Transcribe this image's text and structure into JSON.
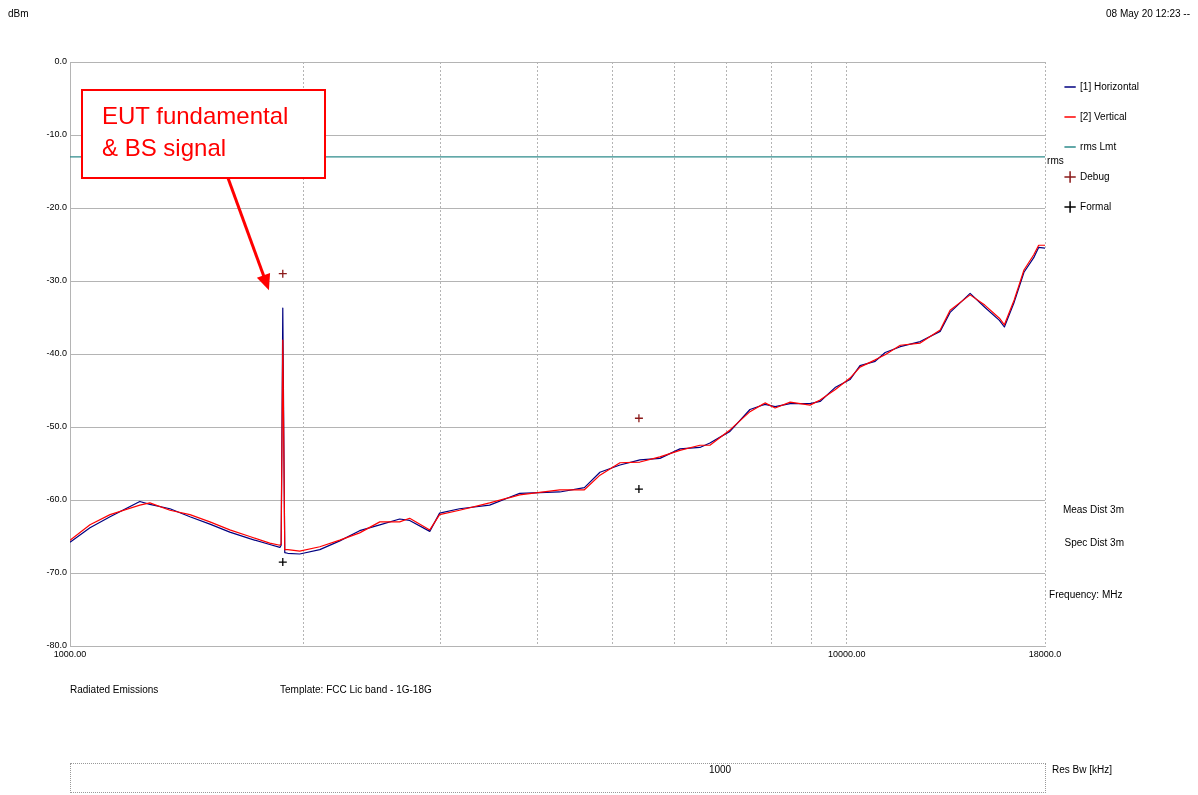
{
  "chart_data": {
    "type": "line",
    "xlabel": "Frequency: MHz",
    "ylabel": "dBm",
    "log": "x",
    "xlim": [
      1000,
      18000
    ],
    "xticks": [
      {
        "value": 1000,
        "label": "1000.00"
      },
      {
        "value": 2000,
        "label": null
      },
      {
        "value": 3000,
        "label": null
      },
      {
        "value": 4000,
        "label": null
      },
      {
        "value": 5000,
        "label": null
      },
      {
        "value": 6000,
        "label": null
      },
      {
        "value": 7000,
        "label": null
      },
      {
        "value": 8000,
        "label": null
      },
      {
        "value": 9000,
        "label": null
      },
      {
        "value": 10000,
        "label": "10000.00"
      },
      {
        "value": 18000,
        "label": "18000.0"
      }
    ],
    "ylim": [
      -80,
      0
    ],
    "yticks": [
      {
        "value": -80,
        "label": "-80.0"
      },
      {
        "value": -70,
        "label": "-70.0"
      },
      {
        "value": -60,
        "label": "-60.0"
      },
      {
        "value": -50,
        "label": "-50.0"
      },
      {
        "value": -40,
        "label": "-40.0"
      },
      {
        "value": -30,
        "label": "-30.0"
      },
      {
        "value": -20,
        "label": "-20.0"
      },
      {
        "value": -10,
        "label": "-10.0"
      },
      {
        "value": 0,
        "label": "0.0"
      }
    ],
    "grid": true,
    "legend": "top right",
    "marker": "none",
    "line_style": "solid",
    "x": [
      1000,
      1061,
      1126,
      1230,
      1267,
      1345,
      1427,
      1514,
      1606,
      1704,
      1808,
      1863,
      1870,
      1879,
      1890,
      1907,
      1976,
      2097,
      2225,
      2360,
      2505,
      2657,
      2737,
      2905,
      2991,
      3173,
      3469,
      3792,
      4271,
      4594,
      4811,
      5105,
      5417,
      5747,
      6098,
      6470,
      6665,
      7073,
      7505,
      7847,
      8086,
      8455,
      8969,
      9239,
      9658,
      10096,
      10399,
      10877,
      11205,
      11718,
      12431,
      13189,
      13583,
      14413,
      15053,
      15721,
      15954,
      16424,
      16908,
      17406,
      17660,
      18000
    ],
    "series": [
      {
        "name": "[1] Horizontal",
        "color": "#000080",
        "values": [
          -65.8,
          -63.8,
          -62.3,
          -60.2,
          -60.6,
          -61.2,
          -62.3,
          -63.3,
          -64.4,
          -65.3,
          -66.1,
          -66.5,
          -66.2,
          -33.7,
          -67.2,
          -67.3,
          -67.4,
          -66.8,
          -65.6,
          -64.2,
          -63.4,
          -62.6,
          -62.8,
          -64.3,
          -61.8,
          -61.2,
          -60.7,
          -59.1,
          -58.9,
          -58.3,
          -56.2,
          -55.2,
          -54.5,
          -54.3,
          -53,
          -52.8,
          -52.2,
          -50.6,
          -47.6,
          -46.9,
          -47.2,
          -46.8,
          -46.8,
          -46.5,
          -44.6,
          -43.5,
          -41.6,
          -41,
          -39.8,
          -39,
          -38.3,
          -36.9,
          -34.3,
          -31.7,
          -33.6,
          -35.4,
          -36.3,
          -32.9,
          -28.8,
          -26.8,
          -25.4,
          -25.5
        ]
      },
      {
        "name": "[2] Vertical",
        "color": "#ff0000",
        "values": [
          -65.5,
          -63.4,
          -62,
          -60.7,
          -60.4,
          -61.4,
          -62,
          -63,
          -64.1,
          -65,
          -65.9,
          -66.2,
          -66,
          -38.1,
          -66.8,
          -66.8,
          -67,
          -66.4,
          -65.5,
          -64.5,
          -63,
          -63,
          -62.5,
          -64.1,
          -62,
          -61.4,
          -60.4,
          -59.3,
          -58.6,
          -58.6,
          -56.6,
          -54.9,
          -54.8,
          -54.1,
          -53.2,
          -52.5,
          -52.5,
          -50.4,
          -47.9,
          -46.7,
          -47.4,
          -46.6,
          -47,
          -46.3,
          -44.9,
          -43.3,
          -41.8,
          -40.8,
          -40.1,
          -38.8,
          -38.5,
          -36.7,
          -34,
          -31.9,
          -33.3,
          -35.1,
          -36,
          -32.6,
          -28.5,
          -26.4,
          -25.1,
          -25.1
        ]
      },
      {
        "name": "rms Lmt",
        "type": "line",
        "color": "#2e8b8b",
        "x": [
          1000,
          18000
        ],
        "values": [
          -13,
          -13
        ]
      },
      {
        "name": "Debug",
        "type": "scatter",
        "marker": "cross",
        "color": "#8b1a1a",
        "x": [
          1879,
          5400
        ],
        "values": [
          -29,
          -48.8
        ]
      },
      {
        "name": "Formal",
        "type": "scatter",
        "marker": "cross",
        "color": "#000000",
        "x": [
          1879,
          5400
        ],
        "values": [
          -68.5,
          -58.5
        ]
      }
    ],
    "annotations": [
      "08 May 20 12:23 --",
      "EUT fundamental & BS signal",
      "Meas Dist 3m",
      "Spec Dist 3m",
      "Radiated Emissions",
      "Template: FCC Lic band - 1G-18G",
      "1000",
      "Res Bw [kHz]",
      {
        "text": "rms",
        "x": 18000,
        "y": -13
      }
    ]
  }
}
